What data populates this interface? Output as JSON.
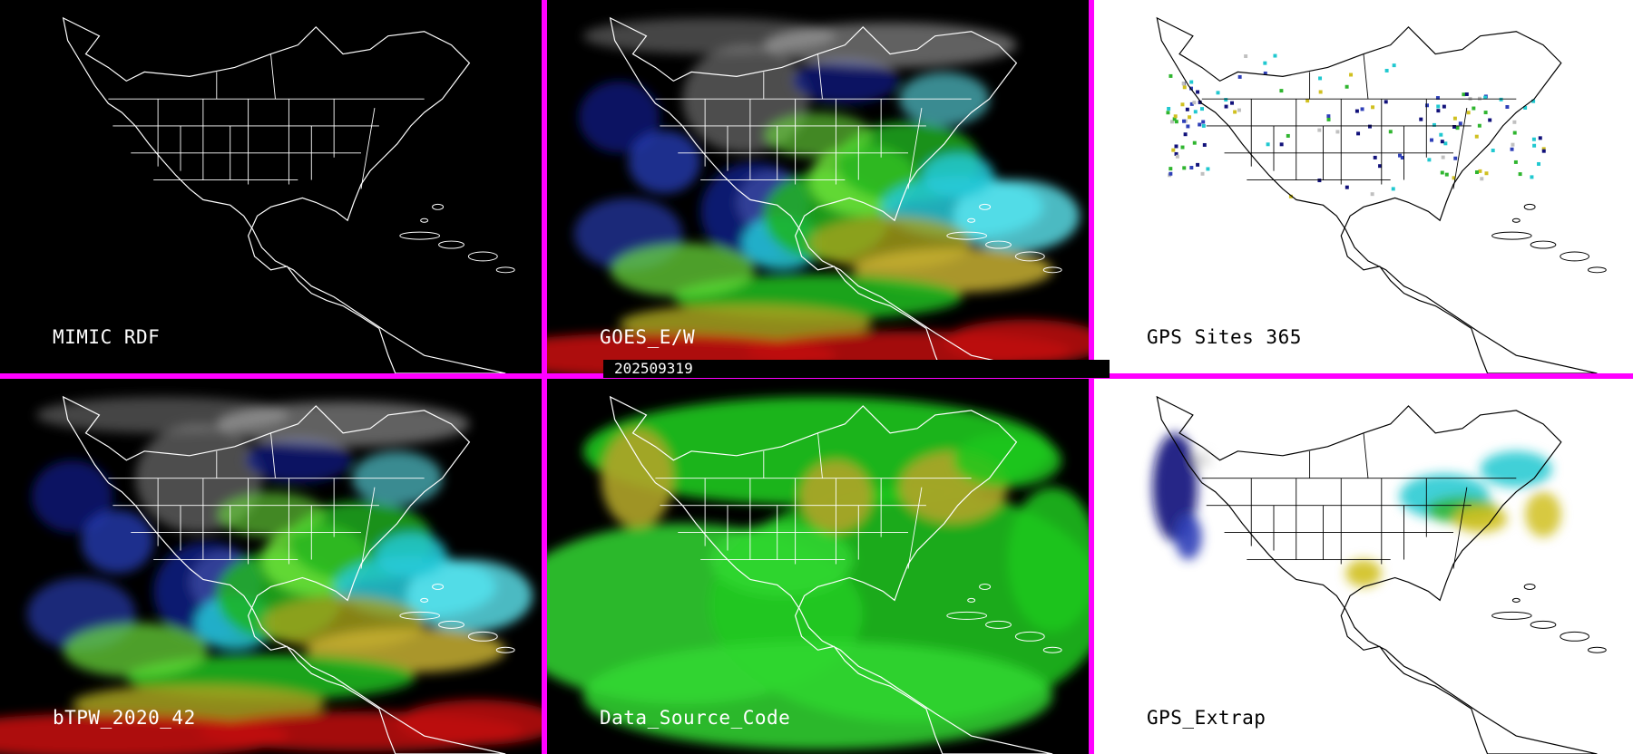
{
  "panels": [
    {
      "id": "mimic-rdf",
      "label": "MIMIC RDF",
      "theme": "dark",
      "bg": "#000000",
      "fields": []
    },
    {
      "id": "goes-e-w",
      "label": "GOES_E/W",
      "theme": "dark",
      "bg": "#000000",
      "fields": [
        "#0b1e8c",
        "#2b45c9",
        "#25c9d8",
        "#5fe8f2",
        "#1fb51f",
        "#6ee33b",
        "#a8a21c",
        "#c8b033",
        "#c01010",
        "#9a9a9a",
        "#d8d8d8"
      ]
    },
    {
      "id": "gps-sites",
      "label": "GPS Sites    365",
      "theme": "light",
      "bg": "#ffffff",
      "fields": [
        "#11117a",
        "#2e3fb8",
        "#20c8d0",
        "#2fb52f",
        "#d0c020",
        "#c0c0c0"
      ]
    },
    {
      "id": "btpw",
      "label": "bTPW_2020_42",
      "theme": "dark",
      "bg": "#000000",
      "fields": [
        "#0b1e8c",
        "#2b45c9",
        "#25c9d8",
        "#5fe8f2",
        "#1fb51f",
        "#6ee33b",
        "#a8a21c",
        "#c8b033",
        "#c01010",
        "#9a9a9a",
        "#d8d8d8"
      ]
    },
    {
      "id": "data-source-code",
      "label": "Data_Source_Code",
      "theme": "dark",
      "bg": "#000000",
      "fields": [
        "#1ec81e",
        "#32d832",
        "#b0a428"
      ]
    },
    {
      "id": "gps-extrap",
      "label": "GPS_Extrap",
      "theme": "light",
      "bg": "#ffffff",
      "fields": [
        "#11117a",
        "#2e3fb8",
        "#20c8d0",
        "#2fb52f",
        "#d0c020",
        "#c0c0c0"
      ]
    }
  ],
  "timestamp": "202509319",
  "colors": {
    "divider": "#ff00ff",
    "coast_dark": "#ffffff",
    "coast_light": "#000000"
  }
}
